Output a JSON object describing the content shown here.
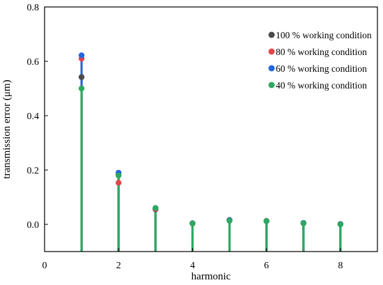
{
  "chart_data": {
    "type": "scatter",
    "style": "stem",
    "xlabel": "harmonic",
    "ylabel": "transmission error (μm)",
    "xlim": [
      0,
      9
    ],
    "ylim": [
      -0.1,
      0.8
    ],
    "xticks": [
      0,
      2,
      4,
      6,
      8
    ],
    "yticks": [
      0.0,
      0.2,
      0.4,
      0.6,
      0.8
    ],
    "ytick_labels": [
      "0.0",
      "0.2",
      "0.4",
      "0.6",
      "0.8"
    ],
    "legend_position": "top-right",
    "x": [
      1,
      2,
      3,
      4,
      5,
      6,
      7,
      8
    ],
    "series": [
      {
        "name": "100 % working condition",
        "color": "#4a4a4a",
        "values": [
          0.542,
          0.182,
          0.055,
          0.004,
          0.016,
          0.012,
          0.005,
          0.001
        ]
      },
      {
        "name": "80 % working condition",
        "color": "#e04848",
        "values": [
          0.61,
          0.153,
          0.057,
          0.003,
          0.014,
          0.013,
          0.004,
          0.001
        ]
      },
      {
        "name": "60 % working condition",
        "color": "#2266dd",
        "values": [
          0.622,
          0.19,
          0.06,
          0.004,
          0.015,
          0.012,
          0.005,
          0.001
        ]
      },
      {
        "name": "40 % working condition",
        "color": "#2ea860",
        "values": [
          0.5,
          0.18,
          0.06,
          0.003,
          0.013,
          0.012,
          0.004,
          0.0
        ]
      }
    ]
  }
}
